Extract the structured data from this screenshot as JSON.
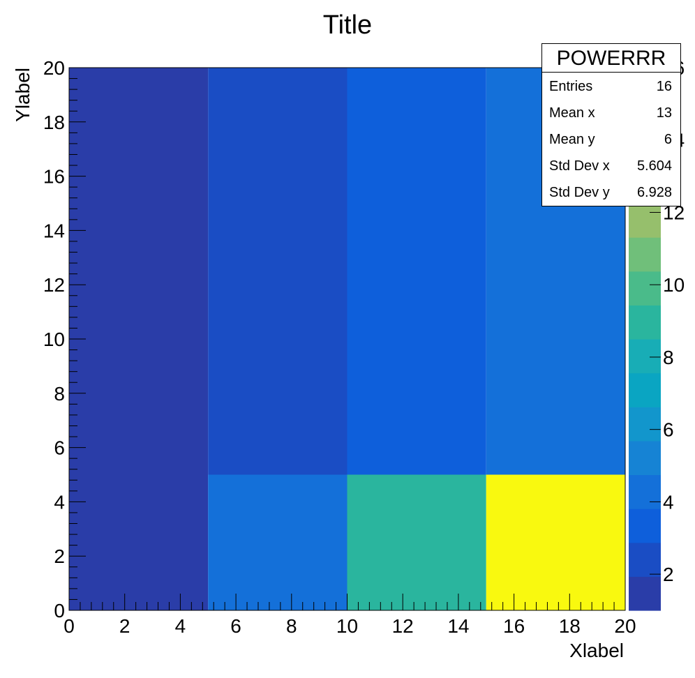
{
  "chart_data": {
    "type": "heatmap",
    "title": "Title",
    "xlabel": "Xlabel",
    "ylabel": "Ylabel",
    "xlim": [
      0,
      20
    ],
    "ylim": [
      0,
      20
    ],
    "x_ticks": [
      "0",
      "2",
      "4",
      "6",
      "8",
      "10",
      "12",
      "14",
      "16",
      "18",
      "20"
    ],
    "y_ticks": [
      "0",
      "2",
      "4",
      "6",
      "8",
      "10",
      "12",
      "14",
      "16",
      "18",
      "20"
    ],
    "cells": [
      {
        "x": [
          0,
          5
        ],
        "y": [
          0,
          20
        ],
        "value": 1
      },
      {
        "x": [
          5,
          10
        ],
        "y": [
          5,
          20
        ],
        "value": 2
      },
      {
        "x": [
          10,
          15
        ],
        "y": [
          5,
          20
        ],
        "value": 3
      },
      {
        "x": [
          15,
          20
        ],
        "y": [
          5,
          20
        ],
        "value": 4
      },
      {
        "x": [
          5,
          10
        ],
        "y": [
          0,
          5
        ],
        "value": 4
      },
      {
        "x": [
          10,
          15
        ],
        "y": [
          0,
          5
        ],
        "value": 9
      },
      {
        "x": [
          15,
          20
        ],
        "y": [
          0,
          5
        ],
        "value": 16
      }
    ],
    "colorbar": {
      "range": [
        1,
        16
      ],
      "ticks": [
        "2",
        "4",
        "6",
        "8",
        "10",
        "12",
        "14",
        "16"
      ],
      "colors": [
        "#2a3da8",
        "#1a4dc4",
        "#0e5fdb",
        "#1470d9",
        "#1683d4",
        "#1296cc",
        "#0aa5c2",
        "#18adb6",
        "#2ab59e",
        "#4abb8a",
        "#70bf7a",
        "#96bf6c",
        "#b6bb60",
        "#d2b955",
        "#eccb3c",
        "#f9f90f"
      ]
    },
    "grid": false,
    "palette": "parula"
  },
  "stats": {
    "title": "POWERRR",
    "rows": [
      {
        "label": "Entries",
        "value": "16"
      },
      {
        "label": "Mean x",
        "value": "13"
      },
      {
        "label": "Mean y",
        "value": "6"
      },
      {
        "label": "Std Dev x",
        "value": "5.604"
      },
      {
        "label": "Std Dev y",
        "value": "6.928"
      }
    ]
  }
}
